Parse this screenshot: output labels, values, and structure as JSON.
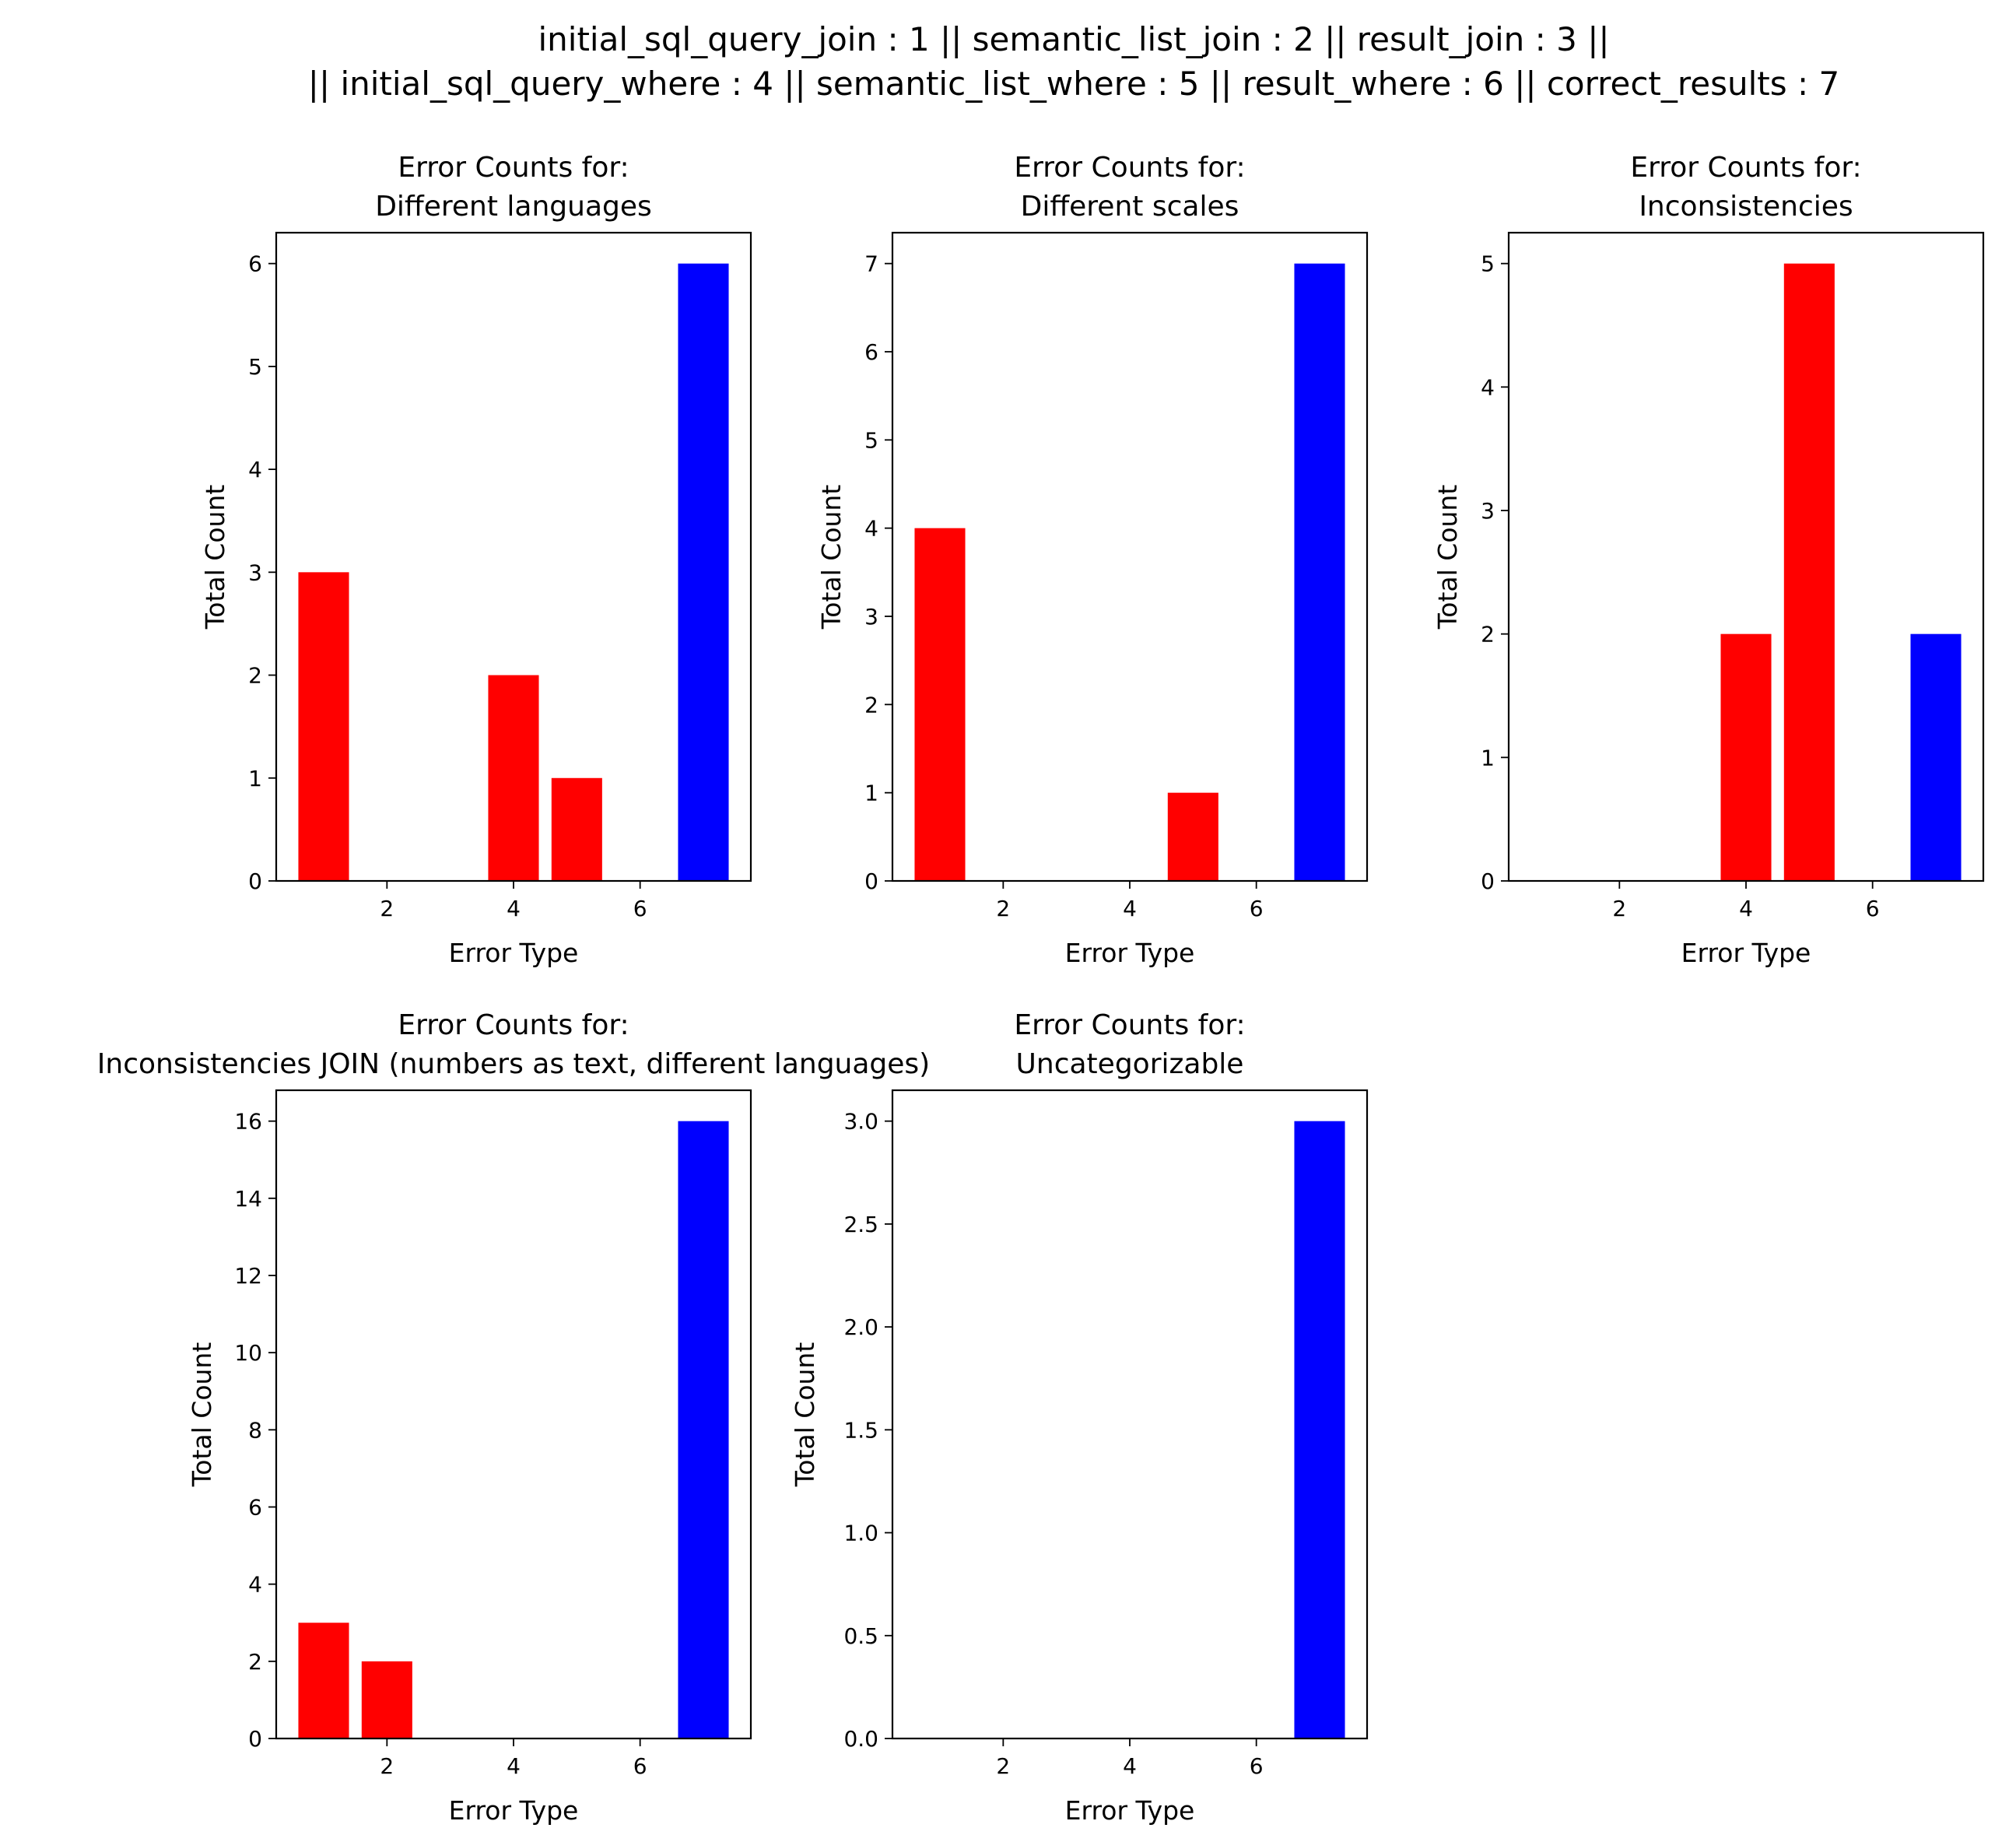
{
  "figure_title": {
    "line1": "initial_sql_query_join : 1 || semantic_list_join : 2 || result_join : 3 ||",
    "line2": "|| initial_sql_query_where : 4 || semantic_list_where : 5 || result_where : 6 || correct_results : 7"
  },
  "colors": {
    "error_bar": "#ff0000",
    "correct_bar": "#0000ff",
    "frame": "#000000",
    "background": "#ffffff"
  },
  "chart_data": [
    {
      "type": "bar",
      "title_line1": "Error Counts for:",
      "title_line2": "Different languages",
      "xlabel": "Error Type",
      "ylabel": "Total Count",
      "x": [
        1,
        2,
        3,
        4,
        5,
        6,
        7
      ],
      "values": [
        3,
        0,
        0,
        2,
        1,
        0,
        6
      ],
      "bar_colors": [
        "red",
        "red",
        "red",
        "red",
        "red",
        "red",
        "blue"
      ],
      "xlim": [
        0.25,
        7.75
      ],
      "ylim": [
        0,
        6.3
      ],
      "xticks": [
        2,
        4,
        6
      ],
      "xtick_labels": [
        "2",
        "4",
        "6"
      ],
      "yticks": [
        0,
        1,
        2,
        3,
        4,
        5,
        6
      ],
      "ytick_labels": [
        "0",
        "1",
        "2",
        "3",
        "4",
        "5",
        "6"
      ],
      "grid": false
    },
    {
      "type": "bar",
      "title_line1": "Error Counts for:",
      "title_line2": "Different scales",
      "xlabel": "Error Type",
      "ylabel": "Total Count",
      "x": [
        1,
        2,
        3,
        4,
        5,
        6,
        7
      ],
      "values": [
        4,
        0,
        0,
        0,
        1,
        0,
        7
      ],
      "bar_colors": [
        "red",
        "red",
        "red",
        "red",
        "red",
        "red",
        "blue"
      ],
      "xlim": [
        0.25,
        7.75
      ],
      "ylim": [
        0,
        7.35
      ],
      "xticks": [
        2,
        4,
        6
      ],
      "xtick_labels": [
        "2",
        "4",
        "6"
      ],
      "yticks": [
        0,
        1,
        2,
        3,
        4,
        5,
        6,
        7
      ],
      "ytick_labels": [
        "0",
        "1",
        "2",
        "3",
        "4",
        "5",
        "6",
        "7"
      ],
      "grid": false
    },
    {
      "type": "bar",
      "title_line1": "Error Counts for:",
      "title_line2": "Inconsistencies",
      "xlabel": "Error Type",
      "ylabel": "Total Count",
      "x": [
        1,
        2,
        3,
        4,
        5,
        6,
        7
      ],
      "values": [
        0,
        0,
        0,
        2,
        5,
        0,
        2
      ],
      "bar_colors": [
        "red",
        "red",
        "red",
        "red",
        "red",
        "red",
        "blue"
      ],
      "xlim": [
        0.25,
        7.75
      ],
      "ylim": [
        0,
        5.25
      ],
      "xticks": [
        2,
        4,
        6
      ],
      "xtick_labels": [
        "2",
        "4",
        "6"
      ],
      "yticks": [
        0,
        1,
        2,
        3,
        4,
        5
      ],
      "ytick_labels": [
        "0",
        "1",
        "2",
        "3",
        "4",
        "5"
      ],
      "grid": false
    },
    {
      "type": "bar",
      "title_line1": "Error Counts for:",
      "title_line2": "Inconsistencies JOIN (numbers as text, different languages)",
      "xlabel": "Error Type",
      "ylabel": "Total Count",
      "x": [
        1,
        2,
        3,
        4,
        5,
        6,
        7
      ],
      "values": [
        3,
        2,
        0,
        0,
        0,
        0,
        16
      ],
      "bar_colors": [
        "red",
        "red",
        "red",
        "red",
        "red",
        "red",
        "blue"
      ],
      "xlim": [
        0.25,
        7.75
      ],
      "ylim": [
        0,
        16.8
      ],
      "xticks": [
        2,
        4,
        6
      ],
      "xtick_labels": [
        "2",
        "4",
        "6"
      ],
      "yticks": [
        0,
        2,
        4,
        6,
        8,
        10,
        12,
        14,
        16
      ],
      "ytick_labels": [
        "0",
        "2",
        "4",
        "6",
        "8",
        "10",
        "12",
        "14",
        "16"
      ],
      "grid": false
    },
    {
      "type": "bar",
      "title_line1": "Error Counts for:",
      "title_line2": "Uncategorizable",
      "xlabel": "Error Type",
      "ylabel": "Total Count",
      "x": [
        1,
        2,
        3,
        4,
        5,
        6,
        7
      ],
      "values": [
        0,
        0,
        0,
        0,
        0,
        0,
        3
      ],
      "bar_colors": [
        "red",
        "red",
        "red",
        "red",
        "red",
        "red",
        "blue"
      ],
      "xlim": [
        0.25,
        7.75
      ],
      "ylim": [
        0,
        3.15
      ],
      "xticks": [
        2,
        4,
        6
      ],
      "xtick_labels": [
        "2",
        "4",
        "6"
      ],
      "yticks": [
        0,
        0.5,
        1,
        1.5,
        2,
        2.5,
        3
      ],
      "ytick_labels": [
        "0.0",
        "0.5",
        "1.0",
        "1.5",
        "2.0",
        "2.5",
        "3.0"
      ],
      "grid": false
    }
  ]
}
